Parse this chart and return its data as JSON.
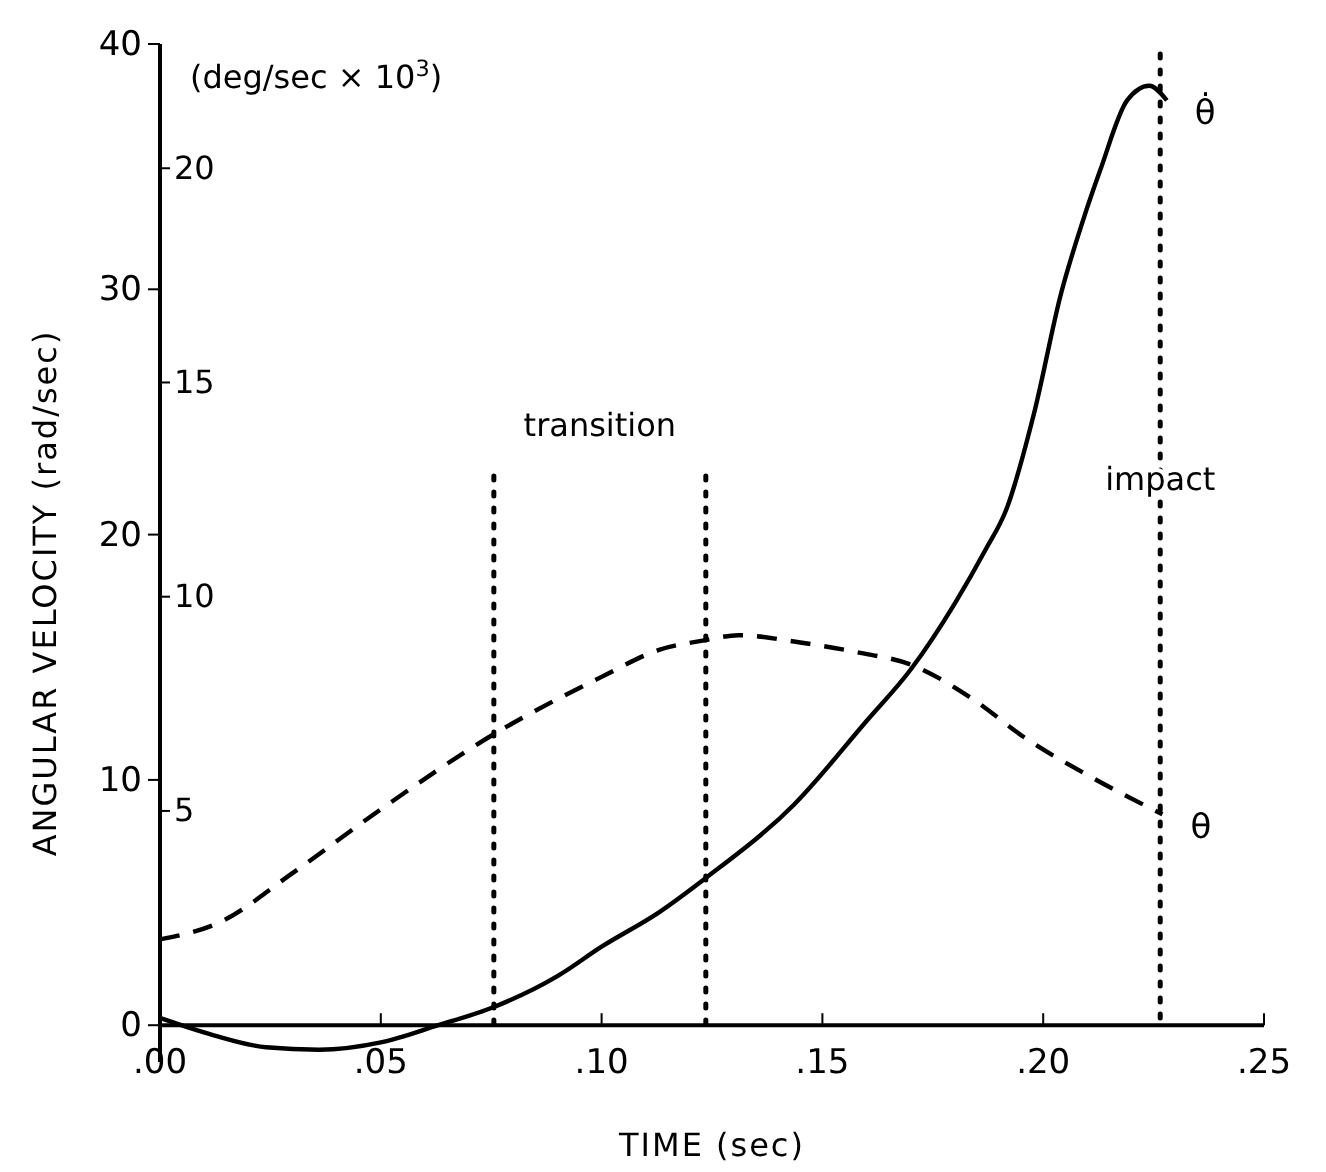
{
  "chart_data": {
    "type": "line",
    "xlabel": "TIME (sec)",
    "ylabel": "ANGULAR VELOCITY (rad/sec)",
    "y2label": "(deg/sec × 10$^{3}$)",
    "xlim": [
      0,
      0.25
    ],
    "xticks": [
      {
        "value": 0,
        "label": ".00"
      },
      {
        "value": 0.05,
        "label": ".05"
      },
      {
        "value": 0.1,
        "label": ".10"
      },
      {
        "value": 0.15,
        "label": ".15"
      },
      {
        "value": 0.2,
        "label": ".20"
      },
      {
        "value": 0.25,
        "label": ".25"
      }
    ],
    "ylim": [
      -1.5,
      40
    ],
    "yticks": [
      0,
      10,
      20,
      30,
      40
    ],
    "y2lim": [
      -0.86,
      22.9
    ],
    "y2ticks": [
      5,
      10,
      15,
      20
    ],
    "marker": "none",
    "series": [
      {
        "name": "θ̇",
        "color": "#000000",
        "line_style": "solid",
        "x": [
          0,
          0.012,
          0.024,
          0.036,
          0.05,
          0.063,
          0.075,
          0.09,
          0.1,
          0.113,
          0.1236,
          0.1436,
          0.16,
          0.17,
          0.18,
          0.187,
          0.1916,
          0.198,
          0.204,
          0.209,
          0.213,
          0.219,
          0.224,
          0.228
        ],
        "values": [
          0.3,
          -0.4,
          -0.9,
          -1.0,
          -0.7,
          0,
          0.7,
          2.0,
          3.2,
          4.6,
          6.0,
          9.0,
          12.4,
          14.5,
          17.2,
          19.4,
          21.0,
          25.0,
          29.8,
          32.8,
          34.9,
          37.7,
          38.3,
          37.7
        ]
      },
      {
        "name": "θ",
        "color": "#000000",
        "line_style": "dashed",
        "x": [
          0,
          0.0136,
          0.03,
          0.05,
          0.075,
          0.1,
          0.113,
          0.1236,
          0.131,
          0.145,
          0.158,
          0.17,
          0.184,
          0.196,
          0.21,
          0.227
        ],
        "values": [
          3.5,
          4.2,
          6.2,
          8.8,
          11.8,
          14.2,
          15.3,
          15.7,
          15.9,
          15.6,
          15.2,
          14.7,
          13.3,
          11.7,
          10.2,
          8.6
        ]
      }
    ],
    "ref_lines": [
      {
        "axis": "x",
        "value": 0.0756,
        "label": null,
        "line_style": "dotted"
      },
      {
        "axis": "x",
        "value": 0.1236,
        "label": null,
        "line_style": "dotted"
      },
      {
        "axis": "x",
        "value": 0.2265,
        "label": "impact",
        "line_style": "dotted"
      }
    ],
    "annotations": [
      "transition"
    ]
  }
}
